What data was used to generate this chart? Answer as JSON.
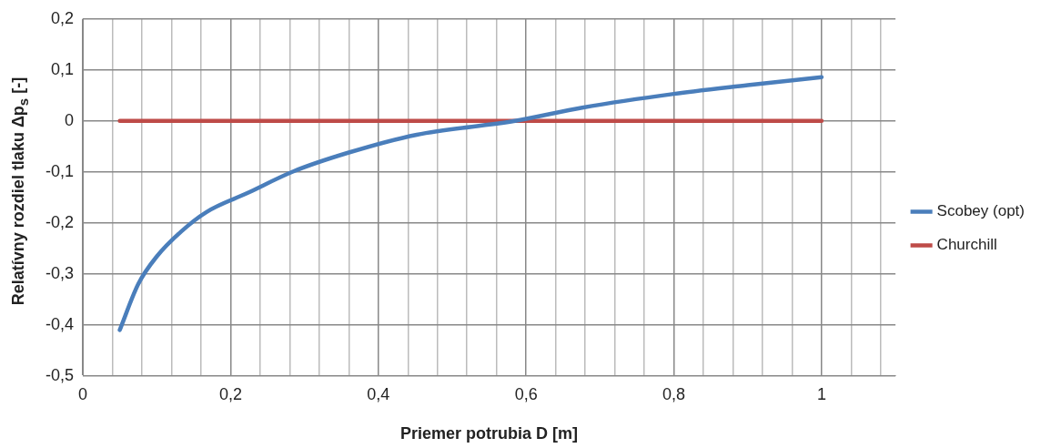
{
  "chart_data": {
    "type": "line",
    "xlabel": "Priemer potrubia D [m]",
    "ylabel": "Relatívny rozdiel tlaku Δp$_{s}$ [-]",
    "xlim": [
      0,
      1.1
    ],
    "xticks": [
      0,
      {
        "value": 0.04,
        "label": null
      },
      {
        "value": 0.08,
        "label": null
      },
      {
        "value": 0.12,
        "label": null
      },
      {
        "value": 0.16,
        "label": null
      },
      {
        "value": 0.2,
        "label": "0,2"
      },
      {
        "value": 0.24,
        "label": null
      },
      {
        "value": 0.28,
        "label": null
      },
      {
        "value": 0.32,
        "label": null
      },
      {
        "value": 0.36,
        "label": null
      },
      {
        "value": 0.4,
        "label": "0,4"
      },
      {
        "value": 0.44,
        "label": null
      },
      {
        "value": 0.48,
        "label": null
      },
      {
        "value": 0.52,
        "label": null
      },
      {
        "value": 0.56,
        "label": null
      },
      {
        "value": 0.6,
        "label": "0,6"
      },
      {
        "value": 0.64,
        "label": null
      },
      {
        "value": 0.68,
        "label": null
      },
      {
        "value": 0.72,
        "label": null
      },
      {
        "value": 0.76,
        "label": null
      },
      {
        "value": 0.8,
        "label": "0,8"
      },
      {
        "value": 0.84,
        "label": null
      },
      {
        "value": 0.88,
        "label": null
      },
      {
        "value": 0.92,
        "label": null
      },
      {
        "value": 0.96,
        "label": null
      },
      1,
      {
        "value": 1.04,
        "label": null
      },
      {
        "value": 1.08,
        "label": null
      }
    ],
    "ylim": [
      -0.5,
      0.2
    ],
    "yticks": [
      {
        "value": -0.5,
        "label": "-0,5"
      },
      {
        "value": -0.4,
        "label": "-0,4"
      },
      {
        "value": -0.3,
        "label": "-0,3"
      },
      {
        "value": -0.2,
        "label": "-0,2"
      },
      {
        "value": -0.1,
        "label": "-0,1"
      },
      0,
      {
        "value": 0.1,
        "label": "0,1"
      },
      {
        "value": 0.2,
        "label": "0,2"
      }
    ],
    "grid": true,
    "legend": "right",
    "marker": "none",
    "line_style": "solid",
    "series": [
      {
        "name": "Scobey (opt)",
        "color": "#4a7ebb",
        "x": [
          0.05,
          0.075,
          0.1,
          0.133,
          0.167,
          0.222,
          0.285,
          0.36,
          0.452,
          0.585,
          0.676,
          0.8,
          0.9,
          1
        ],
        "values": [
          -0.41,
          -0.32,
          -0.266,
          -0.217,
          -0.179,
          -0.142,
          -0.099,
          -0.062,
          -0.027,
          0,
          0.026,
          0.053,
          0.07,
          0.086
        ]
      },
      {
        "name": "Churchill",
        "color": "#be4b48",
        "x": [
          0.05,
          1
        ],
        "values": [
          0,
          0
        ]
      }
    ]
  }
}
